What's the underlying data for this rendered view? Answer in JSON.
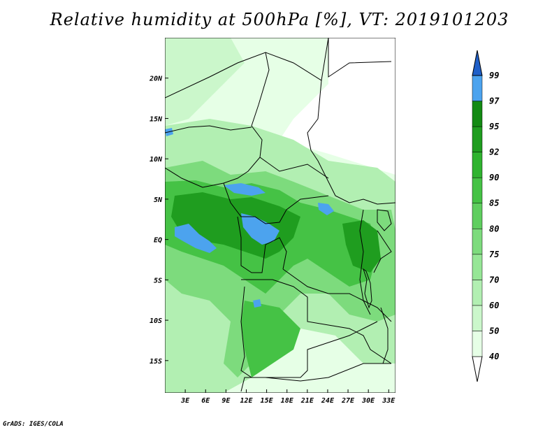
{
  "title": "Relative humidity at 500hPa [%], VT: 2019101203",
  "credit": "GrADS: IGES/COLA",
  "map": {
    "lon_range": [
      0,
      34
    ],
    "lat_range": [
      -19,
      25
    ],
    "lon_ticks": [
      {
        "value": 3,
        "label": "3E"
      },
      {
        "value": 6,
        "label": "6E"
      },
      {
        "value": 9,
        "label": "9E"
      },
      {
        "value": 12,
        "label": "12E"
      },
      {
        "value": 15,
        "label": "15E"
      },
      {
        "value": 18,
        "label": "18E"
      },
      {
        "value": 21,
        "label": "21E"
      },
      {
        "value": 24,
        "label": "24E"
      },
      {
        "value": 27,
        "label": "27E"
      },
      {
        "value": 30,
        "label": "30E"
      },
      {
        "value": 33,
        "label": "33E"
      }
    ],
    "lat_ticks": [
      {
        "value": 20,
        "label": "20N"
      },
      {
        "value": 15,
        "label": "15N"
      },
      {
        "value": 10,
        "label": "10N"
      },
      {
        "value": 5,
        "label": "5N"
      },
      {
        "value": 0,
        "label": "EQ"
      },
      {
        "value": -5,
        "label": "5S"
      },
      {
        "value": -10,
        "label": "10S"
      },
      {
        "value": -15,
        "label": "15S"
      }
    ]
  },
  "colorbar": {
    "levels": [
      {
        "label": "40",
        "color": "#e6ffe6"
      },
      {
        "label": "50",
        "color": "#cbf7cb"
      },
      {
        "label": "60",
        "color": "#b2efb2"
      },
      {
        "label": "70",
        "color": "#96e696"
      },
      {
        "label": "75",
        "color": "#7ddb7d"
      },
      {
        "label": "80",
        "color": "#5fce5f"
      },
      {
        "label": "85",
        "color": "#45c245"
      },
      {
        "label": "90",
        "color": "#2fb32f"
      },
      {
        "label": "92",
        "color": "#1f9d1f"
      },
      {
        "label": "95",
        "color": "#138a13"
      },
      {
        "label": "97",
        "color": "#4ca3ee"
      },
      {
        "label": "99",
        "color": "#2a7ae0"
      }
    ],
    "under_color": "#ffffff",
    "over_color": "#1f5fc8"
  },
  "colors": {
    "land_fill": "#ffffff",
    "border_line": "#000000",
    "dry_fill": "#e6ffe6",
    "moist_fill": "#7ddb7d",
    "wet_fill": "#2fb32f",
    "saturated_fill": "#4ca3ee"
  }
}
